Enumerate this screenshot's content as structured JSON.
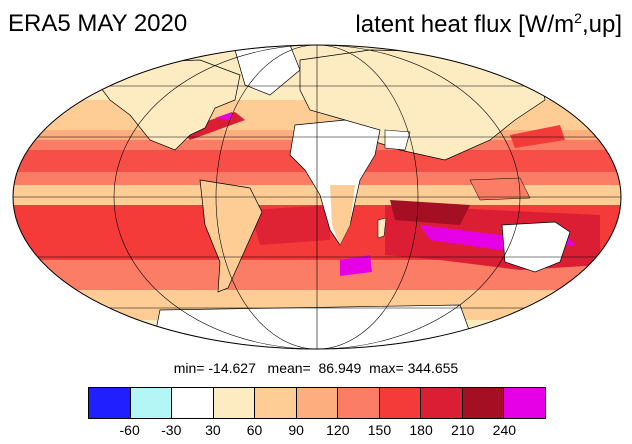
{
  "header": {
    "title_left": "ERA5 MAY 2020",
    "title_right_main": "latent heat flux [W/m",
    "title_right_sup": "2",
    "title_right_tail": ",up]"
  },
  "stats": {
    "text": "min= -14.627   mean=  86.949  max= 344.655",
    "min": -14.627,
    "mean": 86.949,
    "max": 344.655
  },
  "colorbar": {
    "colors": [
      "#1f1fff",
      "#b4f5f5",
      "#ffffff",
      "#fdebc2",
      "#fdcd95",
      "#fcae7e",
      "#fb7d66",
      "#f53a3a",
      "#dc1e35",
      "#a50f23",
      "#e600e6"
    ],
    "ticks": [
      "-60",
      "-30",
      "30",
      "60",
      "90",
      "120",
      "150",
      "180",
      "210",
      "240"
    ]
  },
  "map": {
    "projection": "Mollweide",
    "grid": true
  }
}
